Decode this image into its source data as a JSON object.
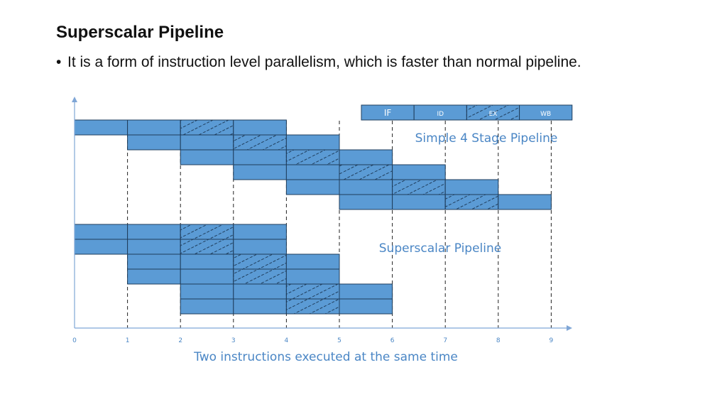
{
  "slide": {
    "title": "Superscalar Pipeline",
    "bullet": "It is a form of instruction level parallelism, which is faster than normal pipeline."
  },
  "legend": {
    "stages": [
      "IF",
      "ID",
      "EX",
      "WB"
    ],
    "hatched_stage": "EX"
  },
  "diagram": {
    "simple_label": "Simple 4 Stage Pipeline",
    "superscalar_label": "Superscalar Pipeline",
    "x_axis_caption": "Two instructions executed at the same time",
    "x_ticks": [
      "0",
      "1",
      "2",
      "3",
      "4",
      "5",
      "6",
      "7",
      "8",
      "9"
    ],
    "simple_pipeline_start_cycles": [
      0,
      1,
      2,
      3,
      4,
      5
    ],
    "superscalar_pipeline_start_cycles": [
      0,
      0,
      1,
      1,
      2,
      2
    ],
    "stages_per_instruction": 4,
    "hatched_stage_index": 2
  },
  "colors": {
    "stage_fill": "#5b9bd5",
    "stage_border": "#1f3d5c",
    "label_text": "#4a86c5",
    "axis": "#7fa6d6"
  }
}
